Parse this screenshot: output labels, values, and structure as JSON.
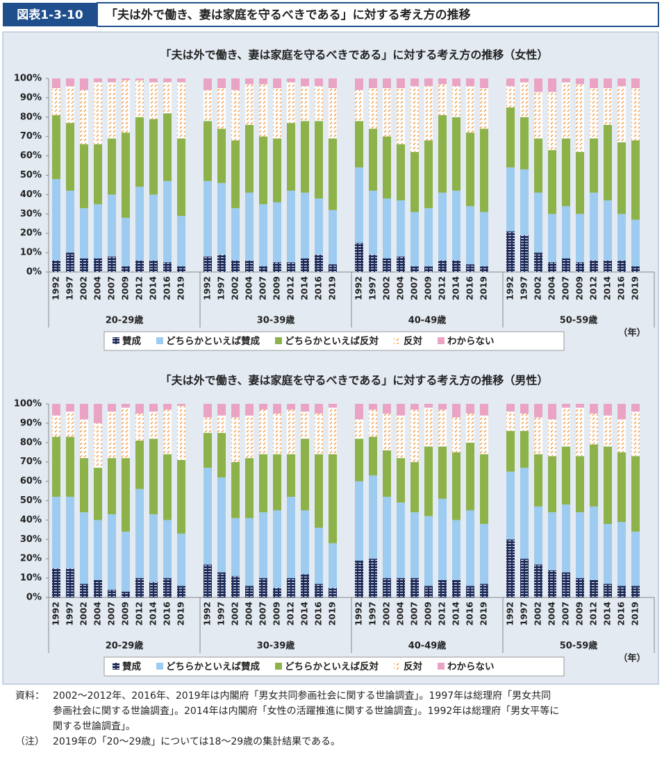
{
  "header": {
    "label": "図表1-3-10",
    "title": "「夫は外で働き、妻は家庭を守るべきである」に対する考え方の推移"
  },
  "chart_data": [
    {
      "type": "stacked_bar",
      "title": "「夫は外で働き、妻は家庭を守るべきである」に対する考え方の推移（女性）",
      "x_label": "（年）",
      "groups": [
        {
          "name": "20-29歳",
          "categories": [
            "1992",
            "1997",
            "2002",
            "2004",
            "2007",
            "2009",
            "2012",
            "2014",
            "2016",
            "2019"
          ]
        },
        {
          "name": "30-39歳",
          "categories": [
            "1992",
            "1997",
            "2002",
            "2004",
            "2007",
            "2009",
            "2012",
            "2014",
            "2016",
            "2019"
          ]
        },
        {
          "name": "40-49歳",
          "categories": [
            "1992",
            "1997",
            "2002",
            "2004",
            "2007",
            "2009",
            "2012",
            "2014",
            "2016",
            "2019"
          ]
        },
        {
          "name": "50-59歳",
          "categories": [
            "1992",
            "1997",
            "2002",
            "2004",
            "2007",
            "2009",
            "2012",
            "2014",
            "2016",
            "2019"
          ]
        }
      ],
      "ylim": [
        0,
        100
      ],
      "yticks": [
        {
          "value": 0,
          "label": "0%"
        },
        {
          "value": 10,
          "label": "10%"
        },
        {
          "value": 20,
          "label": "20%"
        },
        {
          "value": 30,
          "label": "30%"
        },
        {
          "value": 40,
          "label": "40%"
        },
        {
          "value": 50,
          "label": "50%"
        },
        {
          "value": 60,
          "label": "60%"
        },
        {
          "value": 70,
          "label": "70%"
        },
        {
          "value": 80,
          "label": "80%"
        },
        {
          "value": 90,
          "label": "90%"
        },
        {
          "value": 100,
          "label": "100%"
        }
      ],
      "series": [
        {
          "name": "賛成",
          "color": "#1f2d5c",
          "pattern": "stripes",
          "values": [
            6,
            10,
            7,
            7,
            8,
            3,
            6,
            6,
            5,
            3,
            8,
            9,
            6,
            6,
            3,
            5,
            5,
            7,
            9,
            4,
            15,
            9,
            7,
            8,
            3,
            3,
            6,
            6,
            4,
            3,
            21,
            19,
            10,
            5,
            7,
            5,
            6,
            6,
            6,
            3
          ]
        },
        {
          "name": "どちらかといえば賛成",
          "color": "#9ecbf0",
          "values": [
            42,
            32,
            26,
            28,
            32,
            25,
            38,
            34,
            42,
            26,
            39,
            37,
            27,
            35,
            32,
            31,
            37,
            34,
            29,
            28,
            39,
            33,
            31,
            29,
            28,
            30,
            35,
            36,
            30,
            28,
            33,
            34,
            31,
            25,
            27,
            25,
            35,
            31,
            24,
            24
          ]
        },
        {
          "name": "どちらかといえば反対",
          "color": "#8db24a",
          "values": [
            33,
            35,
            33,
            31,
            29,
            44,
            36,
            39,
            35,
            40,
            31,
            28,
            35,
            35,
            35,
            33,
            35,
            37,
            40,
            37,
            24,
            32,
            32,
            29,
            31,
            35,
            40,
            38,
            38,
            43,
            31,
            27,
            28,
            33,
            35,
            32,
            28,
            39,
            37,
            41
          ]
        },
        {
          "name": "反対",
          "color": "#f19a45",
          "pattern": "hatch",
          "values": [
            14,
            19,
            28,
            32,
            29,
            27,
            19,
            19,
            16,
            29,
            16,
            21,
            26,
            21,
            27,
            26,
            21,
            18,
            18,
            26,
            16,
            21,
            25,
            29,
            34,
            28,
            16,
            16,
            24,
            21,
            11,
            18,
            24,
            30,
            29,
            35,
            26,
            19,
            29,
            27
          ]
        },
        {
          "name": "わからない",
          "color": "#eba3c3",
          "values": [
            5,
            4,
            6,
            2,
            2,
            1,
            1,
            2,
            2,
            2,
            6,
            5,
            6,
            3,
            3,
            5,
            2,
            4,
            4,
            5,
            6,
            5,
            5,
            5,
            4,
            4,
            3,
            4,
            4,
            5,
            4,
            2,
            7,
            7,
            2,
            3,
            5,
            5,
            4,
            5
          ]
        }
      ]
    },
    {
      "type": "stacked_bar",
      "title": "「夫は外で働き、妻は家庭を守るべきである」に対する考え方の推移（男性）",
      "x_label": "（年）",
      "groups": [
        {
          "name": "20-29歳",
          "categories": [
            "1992",
            "1997",
            "2002",
            "2004",
            "2007",
            "2009",
            "2012",
            "2014",
            "2016",
            "2019"
          ]
        },
        {
          "name": "30-39歳",
          "categories": [
            "1992",
            "1997",
            "2002",
            "2004",
            "2007",
            "2009",
            "2012",
            "2014",
            "2016",
            "2019"
          ]
        },
        {
          "name": "40-49歳",
          "categories": [
            "1992",
            "1997",
            "2002",
            "2004",
            "2007",
            "2009",
            "2012",
            "2014",
            "2016",
            "2019"
          ]
        },
        {
          "name": "50-59歳",
          "categories": [
            "1992",
            "1997",
            "2002",
            "2004",
            "2007",
            "2009",
            "2012",
            "2014",
            "2016",
            "2019"
          ]
        }
      ],
      "ylim": [
        0,
        100
      ],
      "yticks": [
        {
          "value": 0,
          "label": "0%"
        },
        {
          "value": 10,
          "label": "10%"
        },
        {
          "value": 20,
          "label": "20%"
        },
        {
          "value": 30,
          "label": "30%"
        },
        {
          "value": 40,
          "label": "40%"
        },
        {
          "value": 50,
          "label": "50%"
        },
        {
          "value": 60,
          "label": "60%"
        },
        {
          "value": 70,
          "label": "70%"
        },
        {
          "value": 80,
          "label": "80%"
        },
        {
          "value": 90,
          "label": "90%"
        },
        {
          "value": 100,
          "label": "100%"
        }
      ],
      "series": [
        {
          "name": "賛成",
          "color": "#1f2d5c",
          "pattern": "stripes",
          "values": [
            15,
            15,
            7,
            9,
            4,
            3,
            10,
            8,
            10,
            6,
            17,
            13,
            11,
            6,
            10,
            5,
            10,
            12,
            7,
            5,
            19,
            20,
            10,
            10,
            10,
            6,
            9,
            9,
            6,
            7,
            30,
            20,
            17,
            14,
            13,
            10,
            9,
            7,
            6,
            6
          ]
        },
        {
          "name": "どちらかといえば賛成",
          "color": "#9ecbf0",
          "values": [
            37,
            37,
            37,
            31,
            39,
            31,
            46,
            35,
            30,
            27,
            50,
            49,
            30,
            35,
            34,
            40,
            42,
            33,
            29,
            23,
            41,
            43,
            42,
            39,
            34,
            36,
            42,
            31,
            39,
            31,
            35,
            47,
            30,
            30,
            35,
            34,
            38,
            31,
            33,
            28
          ]
        },
        {
          "name": "どちらかといえば反対",
          "color": "#8db24a",
          "values": [
            31,
            31,
            28,
            27,
            29,
            38,
            25,
            39,
            34,
            38,
            18,
            23,
            29,
            31,
            30,
            29,
            22,
            37,
            38,
            46,
            22,
            20,
            24,
            23,
            26,
            36,
            27,
            35,
            35,
            36,
            21,
            19,
            27,
            29,
            30,
            29,
            32,
            40,
            36,
            39
          ]
        },
        {
          "name": "反対",
          "color": "#f19a45",
          "pattern": "hatch",
          "values": [
            11,
            13,
            20,
            23,
            24,
            26,
            14,
            14,
            23,
            28,
            8,
            9,
            23,
            22,
            23,
            21,
            23,
            14,
            21,
            24,
            10,
            14,
            19,
            22,
            27,
            20,
            19,
            18,
            15,
            20,
            10,
            9,
            19,
            19,
            20,
            25,
            16,
            16,
            17,
            23
          ]
        },
        {
          "name": "わからない",
          "color": "#eba3c3",
          "values": [
            6,
            4,
            8,
            10,
            4,
            2,
            5,
            4,
            3,
            1,
            7,
            6,
            7,
            6,
            3,
            5,
            3,
            4,
            5,
            2,
            8,
            3,
            5,
            6,
            3,
            2,
            3,
            7,
            5,
            6,
            4,
            5,
            7,
            8,
            2,
            2,
            5,
            6,
            8,
            4
          ]
        }
      ]
    }
  ],
  "notes": {
    "source_label": "資料：",
    "source_lines": [
      "2002～2012年、2016年、2019年は内閣府「男女共同参画社会に関する世論調査」。1997年は総理府「男女共同",
      "参画社会に関する世論調査」。2014年は内閣府「女性の活躍推進に関する世論調査」。1992年は総理府「男女平等に",
      "関する世論調査」。"
    ],
    "note_label": "（注）",
    "note": "2019年の「20～29歳」については18～29歳の集計結果である。"
  }
}
